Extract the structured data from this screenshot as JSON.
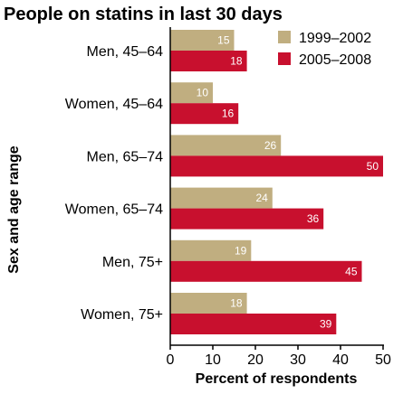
{
  "chart_data": {
    "type": "bar",
    "orientation": "horizontal",
    "title": "People on statins in last 30 days",
    "xlabel": "Percent of respondents",
    "ylabel": "Sex and age range",
    "xlim": [
      0,
      50
    ],
    "xticks": [
      0,
      10,
      20,
      30,
      40,
      50
    ],
    "grid": false,
    "legend_position": "top-right",
    "categories": [
      "Men, 45–64",
      "Women, 45–64",
      "Men, 65–74",
      "Women, 65–74",
      "Men, 75+",
      "Women, 75+"
    ],
    "series": [
      {
        "name": "1999–2002",
        "color": "#c0ae80",
        "values": [
          15,
          10,
          26,
          24,
          19,
          18
        ]
      },
      {
        "name": "2005–2008",
        "color": "#c8102e",
        "values": [
          18,
          16,
          50,
          36,
          45,
          39
        ]
      }
    ]
  }
}
